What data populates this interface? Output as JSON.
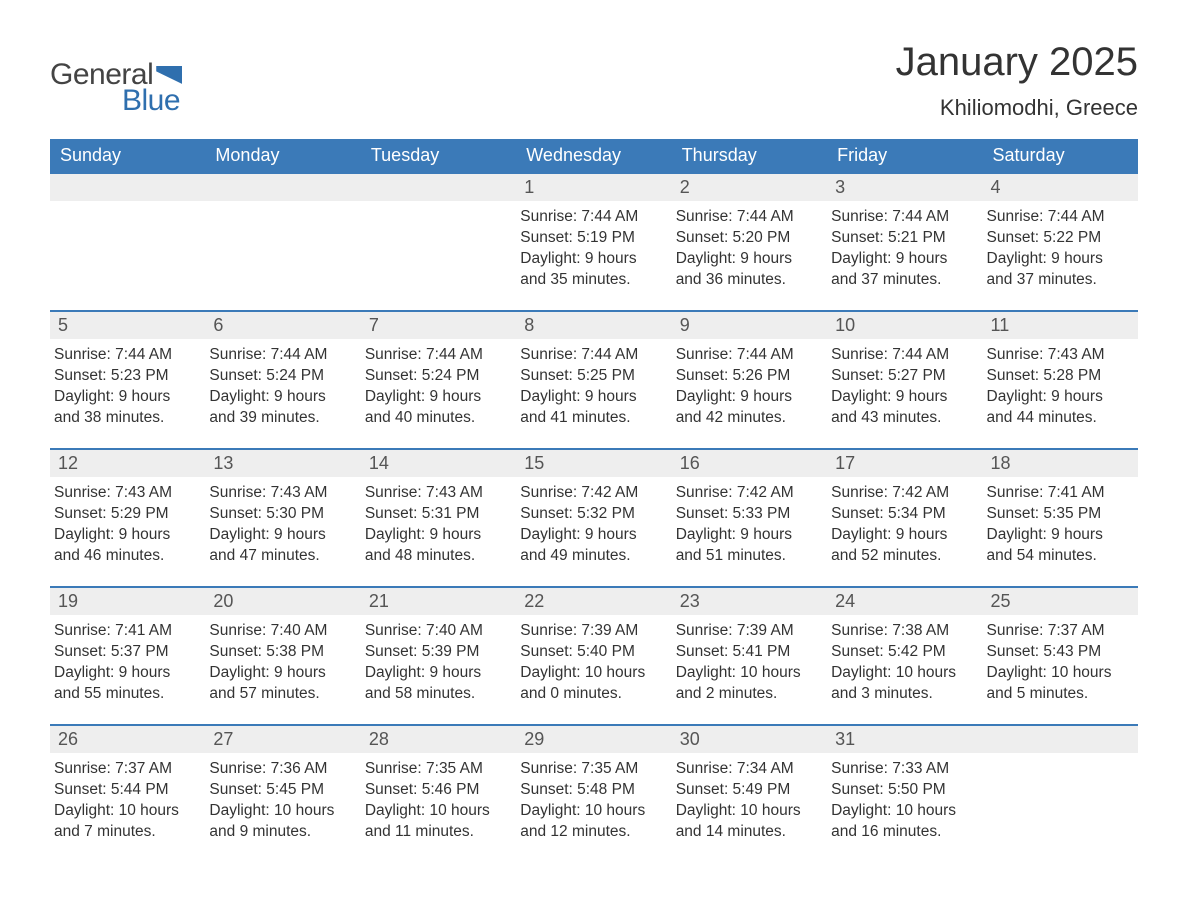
{
  "brand": {
    "part1": "General",
    "part2": "Blue"
  },
  "title": "January 2025",
  "location": "Khiliomodhi, Greece",
  "colors": {
    "header_bg": "#3b7ab8",
    "row_divider": "#3b7ab8",
    "daynum_bg": "#eeeeee",
    "text": "#333333",
    "brand_blue": "#2f6fae",
    "background": "#ffffff"
  },
  "typography": {
    "title_fontsize": 40,
    "location_fontsize": 22,
    "dow_fontsize": 18,
    "daynum_fontsize": 18,
    "body_fontsize": 15.5
  },
  "table": {
    "type": "calendar",
    "columns": [
      "Sunday",
      "Monday",
      "Tuesday",
      "Wednesday",
      "Thursday",
      "Friday",
      "Saturday"
    ],
    "weeks": [
      [
        null,
        null,
        null,
        {
          "n": "1",
          "sunrise": "7:44 AM",
          "sunset": "5:19 PM",
          "daylight": "9 hours and 35 minutes."
        },
        {
          "n": "2",
          "sunrise": "7:44 AM",
          "sunset": "5:20 PM",
          "daylight": "9 hours and 36 minutes."
        },
        {
          "n": "3",
          "sunrise": "7:44 AM",
          "sunset": "5:21 PM",
          "daylight": "9 hours and 37 minutes."
        },
        {
          "n": "4",
          "sunrise": "7:44 AM",
          "sunset": "5:22 PM",
          "daylight": "9 hours and 37 minutes."
        }
      ],
      [
        {
          "n": "5",
          "sunrise": "7:44 AM",
          "sunset": "5:23 PM",
          "daylight": "9 hours and 38 minutes."
        },
        {
          "n": "6",
          "sunrise": "7:44 AM",
          "sunset": "5:24 PM",
          "daylight": "9 hours and 39 minutes."
        },
        {
          "n": "7",
          "sunrise": "7:44 AM",
          "sunset": "5:24 PM",
          "daylight": "9 hours and 40 minutes."
        },
        {
          "n": "8",
          "sunrise": "7:44 AM",
          "sunset": "5:25 PM",
          "daylight": "9 hours and 41 minutes."
        },
        {
          "n": "9",
          "sunrise": "7:44 AM",
          "sunset": "5:26 PM",
          "daylight": "9 hours and 42 minutes."
        },
        {
          "n": "10",
          "sunrise": "7:44 AM",
          "sunset": "5:27 PM",
          "daylight": "9 hours and 43 minutes."
        },
        {
          "n": "11",
          "sunrise": "7:43 AM",
          "sunset": "5:28 PM",
          "daylight": "9 hours and 44 minutes."
        }
      ],
      [
        {
          "n": "12",
          "sunrise": "7:43 AM",
          "sunset": "5:29 PM",
          "daylight": "9 hours and 46 minutes."
        },
        {
          "n": "13",
          "sunrise": "7:43 AM",
          "sunset": "5:30 PM",
          "daylight": "9 hours and 47 minutes."
        },
        {
          "n": "14",
          "sunrise": "7:43 AM",
          "sunset": "5:31 PM",
          "daylight": "9 hours and 48 minutes."
        },
        {
          "n": "15",
          "sunrise": "7:42 AM",
          "sunset": "5:32 PM",
          "daylight": "9 hours and 49 minutes."
        },
        {
          "n": "16",
          "sunrise": "7:42 AM",
          "sunset": "5:33 PM",
          "daylight": "9 hours and 51 minutes."
        },
        {
          "n": "17",
          "sunrise": "7:42 AM",
          "sunset": "5:34 PM",
          "daylight": "9 hours and 52 minutes."
        },
        {
          "n": "18",
          "sunrise": "7:41 AM",
          "sunset": "5:35 PM",
          "daylight": "9 hours and 54 minutes."
        }
      ],
      [
        {
          "n": "19",
          "sunrise": "7:41 AM",
          "sunset": "5:37 PM",
          "daylight": "9 hours and 55 minutes."
        },
        {
          "n": "20",
          "sunrise": "7:40 AM",
          "sunset": "5:38 PM",
          "daylight": "9 hours and 57 minutes."
        },
        {
          "n": "21",
          "sunrise": "7:40 AM",
          "sunset": "5:39 PM",
          "daylight": "9 hours and 58 minutes."
        },
        {
          "n": "22",
          "sunrise": "7:39 AM",
          "sunset": "5:40 PM",
          "daylight": "10 hours and 0 minutes."
        },
        {
          "n": "23",
          "sunrise": "7:39 AM",
          "sunset": "5:41 PM",
          "daylight": "10 hours and 2 minutes."
        },
        {
          "n": "24",
          "sunrise": "7:38 AM",
          "sunset": "5:42 PM",
          "daylight": "10 hours and 3 minutes."
        },
        {
          "n": "25",
          "sunrise": "7:37 AM",
          "sunset": "5:43 PM",
          "daylight": "10 hours and 5 minutes."
        }
      ],
      [
        {
          "n": "26",
          "sunrise": "7:37 AM",
          "sunset": "5:44 PM",
          "daylight": "10 hours and 7 minutes."
        },
        {
          "n": "27",
          "sunrise": "7:36 AM",
          "sunset": "5:45 PM",
          "daylight": "10 hours and 9 minutes."
        },
        {
          "n": "28",
          "sunrise": "7:35 AM",
          "sunset": "5:46 PM",
          "daylight": "10 hours and 11 minutes."
        },
        {
          "n": "29",
          "sunrise": "7:35 AM",
          "sunset": "5:48 PM",
          "daylight": "10 hours and 12 minutes."
        },
        {
          "n": "30",
          "sunrise": "7:34 AM",
          "sunset": "5:49 PM",
          "daylight": "10 hours and 14 minutes."
        },
        {
          "n": "31",
          "sunrise": "7:33 AM",
          "sunset": "5:50 PM",
          "daylight": "10 hours and 16 minutes."
        },
        null
      ]
    ],
    "labels": {
      "sunrise": "Sunrise: ",
      "sunset": "Sunset: ",
      "daylight": "Daylight: "
    }
  }
}
